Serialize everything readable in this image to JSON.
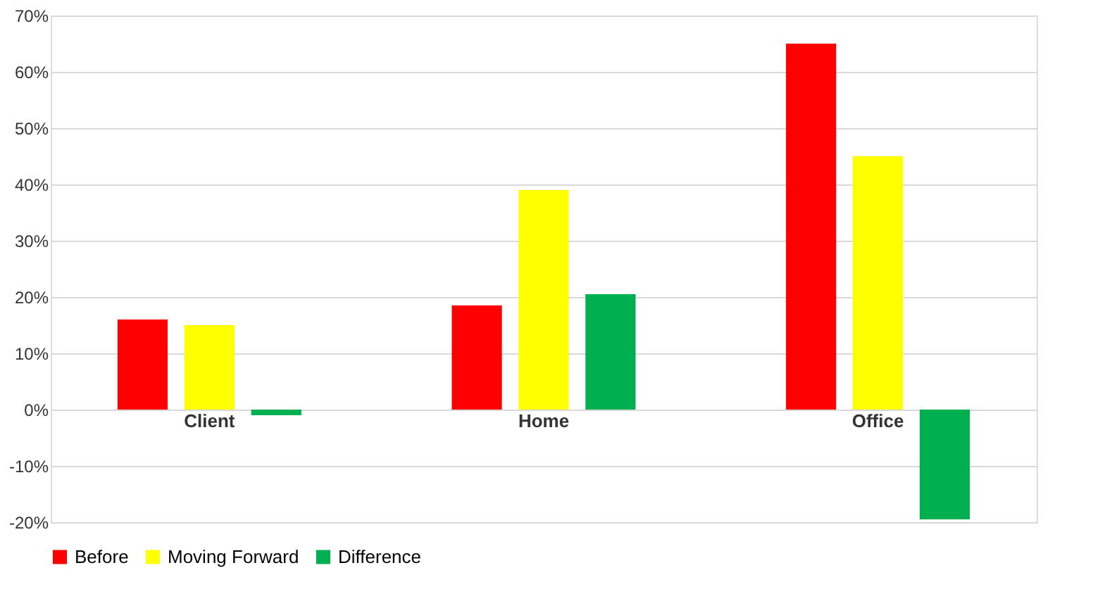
{
  "chart_data": {
    "type": "bar",
    "categories": [
      "Client",
      "Home",
      "Office"
    ],
    "series": [
      {
        "name": "Before",
        "color": "#ff0000",
        "values": [
          16,
          18.5,
          65
        ]
      },
      {
        "name": "Moving Forward",
        "color": "#ffff00",
        "values": [
          15,
          39,
          45
        ]
      },
      {
        "name": "Difference",
        "color": "#00b050",
        "values": [
          -1,
          20.5,
          -19.5
        ]
      }
    ],
    "ylim": [
      -20,
      70
    ],
    "yticks": [
      {
        "value": -20,
        "label": "-20%"
      },
      {
        "value": -10,
        "label": "-10%"
      },
      {
        "value": 0,
        "label": "0%"
      },
      {
        "value": 10,
        "label": "10%"
      },
      {
        "value": 20,
        "label": "20%"
      },
      {
        "value": 30,
        "label": "30%"
      },
      {
        "value": 40,
        "label": "40%"
      },
      {
        "value": 50,
        "label": "50%"
      },
      {
        "value": 60,
        "label": "60%"
      },
      {
        "value": 70,
        "label": "70%"
      }
    ],
    "grid": "y",
    "legend": "bottom"
  }
}
